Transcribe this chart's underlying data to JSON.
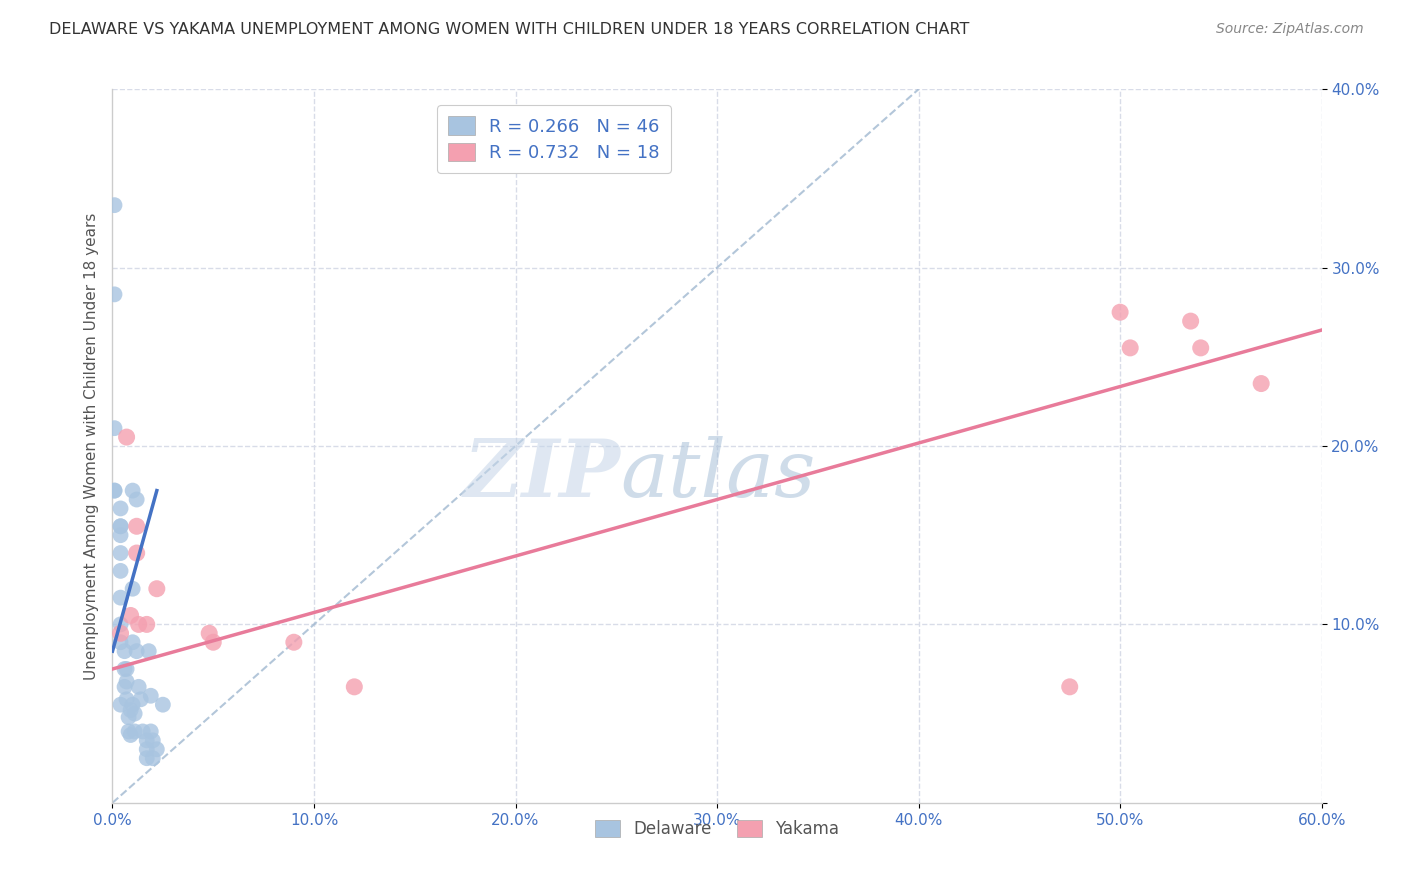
{
  "title": "DELAWARE VS YAKAMA UNEMPLOYMENT AMONG WOMEN WITH CHILDREN UNDER 18 YEARS CORRELATION CHART",
  "source": "Source: ZipAtlas.com",
  "ylabel": "Unemployment Among Women with Children Under 18 years",
  "xlabel": "",
  "xlim": [
    0.0,
    0.6
  ],
  "ylim": [
    0.0,
    0.4
  ],
  "xticks": [
    0.0,
    0.1,
    0.2,
    0.3,
    0.4,
    0.5,
    0.6
  ],
  "yticks": [
    0.0,
    0.1,
    0.2,
    0.3,
    0.4
  ],
  "xtick_labels": [
    "0.0%",
    "10.0%",
    "20.0%",
    "30.0%",
    "40.0%",
    "50.0%",
    "60.0%"
  ],
  "ytick_labels": [
    "",
    "10.0%",
    "20.0%",
    "30.0%",
    "40.0%"
  ],
  "watermark_zip": "ZIP",
  "watermark_atlas": "atlas",
  "legend_R_delaware": "0.266",
  "legend_N_delaware": "46",
  "legend_R_yakama": "0.732",
  "legend_N_yakama": "18",
  "delaware_color": "#a8c4e0",
  "yakama_color": "#f4a0b0",
  "delaware_line_color": "#4472c4",
  "yakama_line_color": "#e87b9a",
  "dashed_line_color": "#a0b8d0",
  "background_color": "#ffffff",
  "grid_color": "#d8dce8",
  "delaware_x": [
    0.001,
    0.001,
    0.001,
    0.001,
    0.001,
    0.004,
    0.004,
    0.004,
    0.004,
    0.004,
    0.004,
    0.004,
    0.004,
    0.004,
    0.004,
    0.006,
    0.006,
    0.006,
    0.007,
    0.007,
    0.007,
    0.008,
    0.008,
    0.009,
    0.009,
    0.01,
    0.01,
    0.01,
    0.01,
    0.011,
    0.011,
    0.012,
    0.012,
    0.013,
    0.014,
    0.015,
    0.017,
    0.017,
    0.017,
    0.018,
    0.019,
    0.019,
    0.02,
    0.02,
    0.022,
    0.025
  ],
  "delaware_y": [
    0.335,
    0.285,
    0.21,
    0.175,
    0.175,
    0.165,
    0.155,
    0.155,
    0.15,
    0.14,
    0.13,
    0.115,
    0.1,
    0.09,
    0.055,
    0.085,
    0.075,
    0.065,
    0.075,
    0.068,
    0.058,
    0.048,
    0.04,
    0.052,
    0.038,
    0.175,
    0.12,
    0.09,
    0.055,
    0.05,
    0.04,
    0.17,
    0.085,
    0.065,
    0.058,
    0.04,
    0.035,
    0.03,
    0.025,
    0.085,
    0.06,
    0.04,
    0.035,
    0.025,
    0.03,
    0.055
  ],
  "yakama_x": [
    0.004,
    0.007,
    0.009,
    0.012,
    0.012,
    0.013,
    0.017,
    0.022,
    0.048,
    0.05,
    0.09,
    0.12,
    0.475,
    0.5,
    0.505,
    0.535,
    0.54,
    0.57
  ],
  "yakama_y": [
    0.095,
    0.205,
    0.105,
    0.155,
    0.14,
    0.1,
    0.1,
    0.12,
    0.095,
    0.09,
    0.09,
    0.065,
    0.065,
    0.275,
    0.255,
    0.27,
    0.255,
    0.235
  ],
  "delaware_trend_x": [
    0.0,
    0.022
  ],
  "delaware_trend_y": [
    0.085,
    0.175
  ],
  "yakama_trend_x": [
    0.0,
    0.6
  ],
  "yakama_trend_y": [
    0.075,
    0.265
  ],
  "dashed_trend_x": [
    0.0,
    0.4
  ],
  "dashed_trend_y": [
    0.0,
    0.4
  ]
}
